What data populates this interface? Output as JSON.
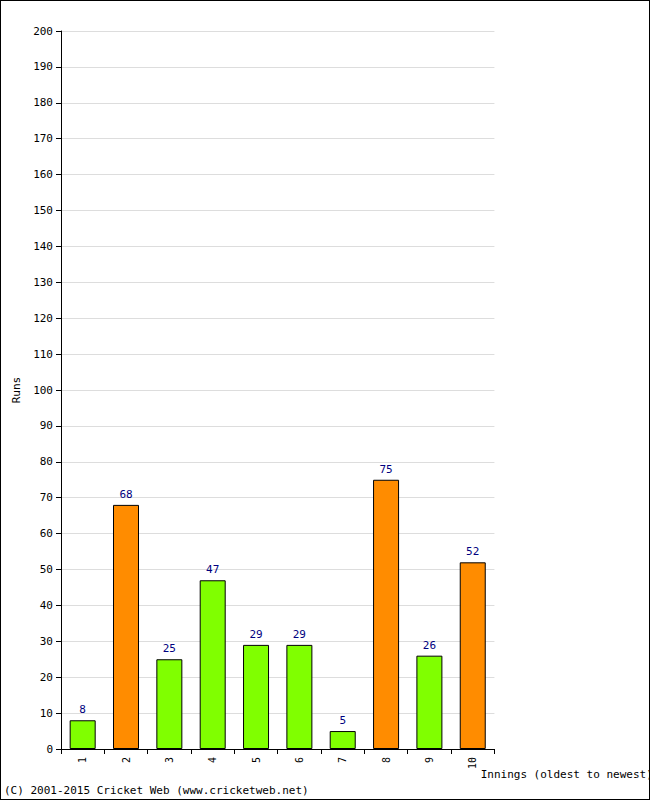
{
  "chart_data": {
    "type": "bar",
    "categories": [
      "1",
      "2",
      "3",
      "4",
      "5",
      "6",
      "7",
      "8",
      "9",
      "10"
    ],
    "values": [
      8,
      68,
      25,
      47,
      29,
      29,
      5,
      75,
      26,
      52
    ],
    "colors": [
      "#80ff00",
      "#ff8c00",
      "#80ff00",
      "#80ff00",
      "#80ff00",
      "#80ff00",
      "#80ff00",
      "#ff8c00",
      "#80ff00",
      "#ff8c00"
    ],
    "y_label": "Runs",
    "x_label": "Innings (oldest to newest)",
    "annotation": "(C) 2001-2015 Cricket Web (www.cricketweb.net)",
    "ylim": [
      0,
      200
    ],
    "yticks": [
      0,
      10,
      20,
      30,
      40,
      50,
      60,
      70,
      80,
      90,
      100,
      110,
      120,
      130,
      140,
      150,
      160,
      170,
      180,
      190,
      200
    ],
    "grid": true,
    "data_labels": true
  }
}
